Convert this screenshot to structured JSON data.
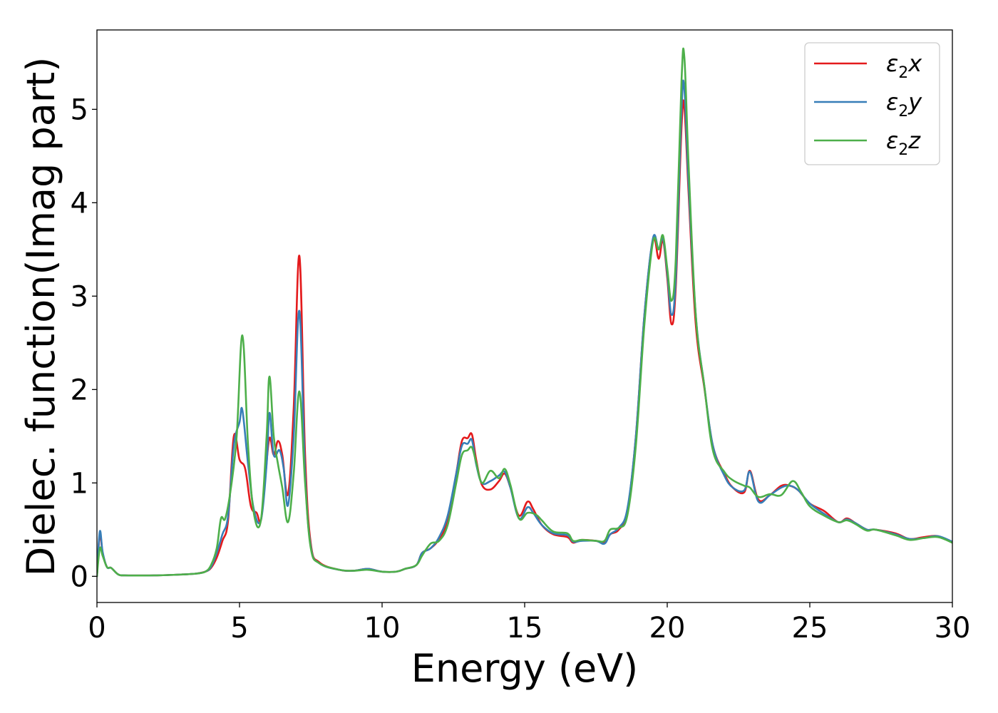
{
  "chart_data": {
    "type": "line",
    "title": "",
    "xlabel": "Energy (eV)",
    "ylabel": "Dielec. function(Imag part)",
    "xlim": [
      0,
      30
    ],
    "ylim": [
      -0.28,
      5.85
    ],
    "xticks": [
      0,
      5,
      10,
      15,
      20,
      25,
      30
    ],
    "xtick_labels": [
      "0",
      "5",
      "10",
      "15",
      "20",
      "25",
      "30"
    ],
    "yticks": [
      0,
      1,
      2,
      3,
      4,
      5
    ],
    "ytick_labels": [
      "0",
      "1",
      "2",
      "3",
      "4",
      "5"
    ],
    "grid": false,
    "legend_position": "top-right",
    "series": [
      {
        "name": "ε2x",
        "name_base": "ε",
        "name_sub": "2",
        "name_var": "x",
        "color": "#e41a1c",
        "points": [
          [
            0,
            0.0
          ],
          [
            0.1,
            0.45
          ],
          [
            0.2,
            0.25
          ],
          [
            0.35,
            0.1
          ],
          [
            0.5,
            0.09
          ],
          [
            0.75,
            0.02
          ],
          [
            1,
            0.01
          ],
          [
            2,
            0.01
          ],
          [
            3,
            0.02
          ],
          [
            3.5,
            0.03
          ],
          [
            3.8,
            0.05
          ],
          [
            4,
            0.09
          ],
          [
            4.2,
            0.2
          ],
          [
            4.4,
            0.38
          ],
          [
            4.6,
            0.6
          ],
          [
            4.8,
            1.5
          ],
          [
            5,
            1.25
          ],
          [
            5.2,
            1.15
          ],
          [
            5.4,
            0.75
          ],
          [
            5.6,
            0.68
          ],
          [
            5.75,
            0.6
          ],
          [
            5.9,
            1.05
          ],
          [
            6.05,
            1.48
          ],
          [
            6.2,
            1.3
          ],
          [
            6.35,
            1.45
          ],
          [
            6.5,
            1.3
          ],
          [
            6.7,
            0.88
          ],
          [
            6.9,
            1.8
          ],
          [
            7.1,
            3.43
          ],
          [
            7.3,
            1.3
          ],
          [
            7.5,
            0.35
          ],
          [
            7.8,
            0.15
          ],
          [
            8.5,
            0.07
          ],
          [
            9,
            0.06
          ],
          [
            9.5,
            0.08
          ],
          [
            10,
            0.05
          ],
          [
            10.5,
            0.05
          ],
          [
            10.8,
            0.08
          ],
          [
            11.2,
            0.12
          ],
          [
            11.4,
            0.25
          ],
          [
            11.7,
            0.3
          ],
          [
            12,
            0.4
          ],
          [
            12.3,
            0.6
          ],
          [
            12.6,
            1.1
          ],
          [
            12.8,
            1.45
          ],
          [
            13,
            1.48
          ],
          [
            13.15,
            1.52
          ],
          [
            13.3,
            1.25
          ],
          [
            13.5,
            0.98
          ],
          [
            13.8,
            0.93
          ],
          [
            14.1,
            1.02
          ],
          [
            14.3,
            1.1
          ],
          [
            14.5,
            0.95
          ],
          [
            14.8,
            0.65
          ],
          [
            15.1,
            0.8
          ],
          [
            15.3,
            0.72
          ],
          [
            15.6,
            0.55
          ],
          [
            16,
            0.45
          ],
          [
            16.5,
            0.42
          ],
          [
            16.7,
            0.36
          ],
          [
            17,
            0.39
          ],
          [
            17.5,
            0.38
          ],
          [
            17.8,
            0.36
          ],
          [
            18,
            0.45
          ],
          [
            18.3,
            0.5
          ],
          [
            18.6,
            0.7
          ],
          [
            18.9,
            1.5
          ],
          [
            19.2,
            2.8
          ],
          [
            19.5,
            3.6
          ],
          [
            19.7,
            3.4
          ],
          [
            19.85,
            3.6
          ],
          [
            20.0,
            3.2
          ],
          [
            20.15,
            2.7
          ],
          [
            20.3,
            3.1
          ],
          [
            20.5,
            4.8
          ],
          [
            20.6,
            5.02
          ],
          [
            20.75,
            4.1
          ],
          [
            21,
            2.7
          ],
          [
            21.3,
            2.02
          ],
          [
            21.6,
            1.4
          ],
          [
            22,
            1.1
          ],
          [
            22.3,
            0.95
          ],
          [
            22.7,
            0.9
          ],
          [
            22.9,
            1.13
          ],
          [
            23.2,
            0.82
          ],
          [
            23.6,
            0.87
          ],
          [
            24,
            0.97
          ],
          [
            24.3,
            0.97
          ],
          [
            24.6,
            0.92
          ],
          [
            25,
            0.78
          ],
          [
            25.5,
            0.7
          ],
          [
            26,
            0.58
          ],
          [
            26.3,
            0.62
          ],
          [
            26.6,
            0.57
          ],
          [
            27,
            0.5
          ],
          [
            27.3,
            0.5
          ],
          [
            28,
            0.46
          ],
          [
            28.5,
            0.4
          ],
          [
            29,
            0.42
          ],
          [
            29.5,
            0.43
          ],
          [
            30,
            0.36
          ]
        ]
      },
      {
        "name": "ε2y",
        "name_base": "ε",
        "name_sub": "2",
        "name_var": "y",
        "color": "#377eb8",
        "points": [
          [
            0,
            0.0
          ],
          [
            0.1,
            0.48
          ],
          [
            0.2,
            0.26
          ],
          [
            0.35,
            0.1
          ],
          [
            0.5,
            0.09
          ],
          [
            0.75,
            0.02
          ],
          [
            1,
            0.01
          ],
          [
            2,
            0.01
          ],
          [
            3,
            0.02
          ],
          [
            3.5,
            0.03
          ],
          [
            3.8,
            0.05
          ],
          [
            4,
            0.1
          ],
          [
            4.2,
            0.25
          ],
          [
            4.4,
            0.45
          ],
          [
            4.6,
            0.65
          ],
          [
            4.8,
            1.4
          ],
          [
            5,
            1.65
          ],
          [
            5.1,
            1.78
          ],
          [
            5.3,
            1.2
          ],
          [
            5.5,
            0.72
          ],
          [
            5.75,
            0.6
          ],
          [
            5.95,
            1.2
          ],
          [
            6.05,
            1.75
          ],
          [
            6.2,
            1.3
          ],
          [
            6.4,
            1.35
          ],
          [
            6.55,
            1.15
          ],
          [
            6.7,
            0.76
          ],
          [
            6.9,
            1.5
          ],
          [
            7.1,
            2.84
          ],
          [
            7.3,
            1.1
          ],
          [
            7.5,
            0.32
          ],
          [
            7.8,
            0.14
          ],
          [
            8.5,
            0.07
          ],
          [
            9,
            0.06
          ],
          [
            9.5,
            0.08
          ],
          [
            10,
            0.05
          ],
          [
            10.5,
            0.05
          ],
          [
            10.8,
            0.08
          ],
          [
            11.2,
            0.12
          ],
          [
            11.4,
            0.25
          ],
          [
            11.7,
            0.3
          ],
          [
            12,
            0.42
          ],
          [
            12.3,
            0.65
          ],
          [
            12.6,
            1.1
          ],
          [
            12.8,
            1.4
          ],
          [
            13,
            1.42
          ],
          [
            13.15,
            1.46
          ],
          [
            13.3,
            1.2
          ],
          [
            13.5,
            1.0
          ],
          [
            13.8,
            1.02
          ],
          [
            14.1,
            1.08
          ],
          [
            14.3,
            1.12
          ],
          [
            14.5,
            0.95
          ],
          [
            14.8,
            0.62
          ],
          [
            15.1,
            0.74
          ],
          [
            15.3,
            0.68
          ],
          [
            15.6,
            0.55
          ],
          [
            16,
            0.46
          ],
          [
            16.5,
            0.44
          ],
          [
            16.7,
            0.37
          ],
          [
            17,
            0.38
          ],
          [
            17.5,
            0.38
          ],
          [
            17.8,
            0.35
          ],
          [
            18,
            0.45
          ],
          [
            18.3,
            0.52
          ],
          [
            18.6,
            0.72
          ],
          [
            18.9,
            1.5
          ],
          [
            19.2,
            2.8
          ],
          [
            19.5,
            3.62
          ],
          [
            19.7,
            3.5
          ],
          [
            19.85,
            3.62
          ],
          [
            20.0,
            3.25
          ],
          [
            20.15,
            2.8
          ],
          [
            20.3,
            3.2
          ],
          [
            20.5,
            5.0
          ],
          [
            20.6,
            5.22
          ],
          [
            20.75,
            4.2
          ],
          [
            21,
            2.8
          ],
          [
            21.3,
            2.04
          ],
          [
            21.6,
            1.4
          ],
          [
            22,
            1.08
          ],
          [
            22.3,
            0.95
          ],
          [
            22.7,
            0.92
          ],
          [
            22.9,
            1.12
          ],
          [
            23.2,
            0.8
          ],
          [
            23.6,
            0.87
          ],
          [
            24,
            0.95
          ],
          [
            24.3,
            0.97
          ],
          [
            24.6,
            0.92
          ],
          [
            25,
            0.78
          ],
          [
            25.5,
            0.67
          ],
          [
            26,
            0.58
          ],
          [
            26.3,
            0.61
          ],
          [
            26.6,
            0.57
          ],
          [
            27,
            0.5
          ],
          [
            27.3,
            0.5
          ],
          [
            28,
            0.45
          ],
          [
            28.5,
            0.4
          ],
          [
            29,
            0.41
          ],
          [
            29.5,
            0.43
          ],
          [
            30,
            0.37
          ]
        ]
      },
      {
        "name": "ε2z",
        "name_base": "ε",
        "name_sub": "2",
        "name_var": "z",
        "color": "#4daf4a",
        "points": [
          [
            0,
            0.0
          ],
          [
            0.1,
            0.3
          ],
          [
            0.2,
            0.22
          ],
          [
            0.35,
            0.1
          ],
          [
            0.5,
            0.09
          ],
          [
            0.75,
            0.02
          ],
          [
            1,
            0.01
          ],
          [
            2,
            0.01
          ],
          [
            3,
            0.02
          ],
          [
            3.5,
            0.03
          ],
          [
            3.8,
            0.05
          ],
          [
            4,
            0.12
          ],
          [
            4.2,
            0.3
          ],
          [
            4.35,
            0.62
          ],
          [
            4.5,
            0.62
          ],
          [
            4.7,
            0.95
          ],
          [
            4.9,
            1.5
          ],
          [
            5.1,
            2.58
          ],
          [
            5.3,
            1.4
          ],
          [
            5.5,
            0.68
          ],
          [
            5.75,
            0.6
          ],
          [
            5.95,
            1.5
          ],
          [
            6.05,
            2.14
          ],
          [
            6.2,
            1.5
          ],
          [
            6.35,
            1.2
          ],
          [
            6.5,
            0.95
          ],
          [
            6.7,
            0.58
          ],
          [
            6.9,
            1.1
          ],
          [
            7.1,
            1.98
          ],
          [
            7.3,
            1.0
          ],
          [
            7.5,
            0.3
          ],
          [
            7.8,
            0.14
          ],
          [
            8.5,
            0.07
          ],
          [
            9,
            0.06
          ],
          [
            9.5,
            0.07
          ],
          [
            10,
            0.05
          ],
          [
            10.5,
            0.05
          ],
          [
            10.8,
            0.08
          ],
          [
            11.2,
            0.12
          ],
          [
            11.4,
            0.22
          ],
          [
            11.7,
            0.35
          ],
          [
            12,
            0.38
          ],
          [
            12.3,
            0.55
          ],
          [
            12.6,
            1.0
          ],
          [
            12.8,
            1.3
          ],
          [
            13,
            1.35
          ],
          [
            13.15,
            1.38
          ],
          [
            13.3,
            1.22
          ],
          [
            13.5,
            1.0
          ],
          [
            13.8,
            1.13
          ],
          [
            14.1,
            1.05
          ],
          [
            14.3,
            1.15
          ],
          [
            14.5,
            0.98
          ],
          [
            14.8,
            0.62
          ],
          [
            15.1,
            0.68
          ],
          [
            15.4,
            0.66
          ],
          [
            15.6,
            0.6
          ],
          [
            16,
            0.48
          ],
          [
            16.5,
            0.46
          ],
          [
            16.7,
            0.38
          ],
          [
            17,
            0.39
          ],
          [
            17.5,
            0.38
          ],
          [
            17.8,
            0.38
          ],
          [
            18,
            0.5
          ],
          [
            18.3,
            0.52
          ],
          [
            18.6,
            0.65
          ],
          [
            18.9,
            1.4
          ],
          [
            19.2,
            2.7
          ],
          [
            19.5,
            3.58
          ],
          [
            19.7,
            3.5
          ],
          [
            19.85,
            3.65
          ],
          [
            20.0,
            3.3
          ],
          [
            20.15,
            2.95
          ],
          [
            20.3,
            3.4
          ],
          [
            20.5,
            5.3
          ],
          [
            20.6,
            5.56
          ],
          [
            20.75,
            4.4
          ],
          [
            21,
            2.8
          ],
          [
            21.3,
            2.04
          ],
          [
            21.6,
            1.35
          ],
          [
            22,
            1.12
          ],
          [
            22.3,
            1.03
          ],
          [
            22.7,
            0.97
          ],
          [
            22.9,
            0.95
          ],
          [
            23.2,
            0.85
          ],
          [
            23.6,
            0.88
          ],
          [
            24,
            0.87
          ],
          [
            24.4,
            1.02
          ],
          [
            24.7,
            0.9
          ],
          [
            25,
            0.75
          ],
          [
            25.5,
            0.65
          ],
          [
            26,
            0.58
          ],
          [
            26.3,
            0.6
          ],
          [
            26.6,
            0.56
          ],
          [
            27,
            0.49
          ],
          [
            27.3,
            0.5
          ],
          [
            28,
            0.44
          ],
          [
            28.5,
            0.39
          ],
          [
            29,
            0.41
          ],
          [
            29.5,
            0.42
          ],
          [
            30,
            0.36
          ]
        ]
      }
    ]
  }
}
